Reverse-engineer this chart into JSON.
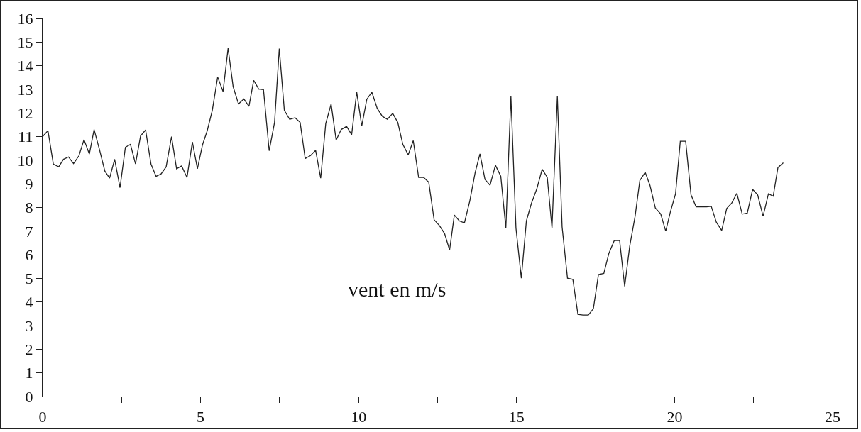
{
  "chart_data": {
    "type": "line",
    "annotations": [
      "vent en m/s"
    ],
    "x": [
      0.0,
      0.17,
      0.34,
      0.51,
      0.66,
      0.82,
      0.98,
      1.15,
      1.31,
      1.48,
      1.63,
      1.8,
      1.97,
      2.12,
      2.28,
      2.45,
      2.62,
      2.78,
      2.94,
      3.1,
      3.26,
      3.43,
      3.59,
      3.75,
      3.91,
      4.08,
      4.24,
      4.4,
      4.57,
      4.74,
      4.9,
      5.06,
      5.21,
      5.37,
      5.54,
      5.71,
      5.87,
      6.03,
      6.2,
      6.37,
      6.53,
      6.68,
      6.84,
      6.99,
      7.17,
      7.34,
      7.49,
      7.65,
      7.82,
      7.99,
      8.15,
      8.31,
      8.48,
      8.64,
      8.8,
      8.96,
      9.13,
      9.29,
      9.45,
      9.62,
      9.78,
      9.94,
      10.1,
      10.26,
      10.42,
      10.59,
      10.75,
      10.91,
      11.08,
      11.24,
      11.4,
      11.57,
      11.73,
      11.9,
      12.06,
      12.22,
      12.39,
      12.56,
      12.72,
      12.88,
      13.03,
      13.19,
      13.35,
      13.52,
      13.69,
      13.84,
      14.0,
      14.16,
      14.33,
      14.5,
      14.66,
      14.82,
      14.98,
      15.15,
      15.31,
      15.47,
      15.64,
      15.81,
      15.97,
      16.12,
      16.29,
      16.44,
      16.61,
      16.78,
      16.94,
      17.1,
      17.27,
      17.43,
      17.59,
      17.76,
      17.92,
      18.09,
      18.26,
      18.42,
      18.58,
      18.75,
      18.9,
      19.07,
      19.22,
      19.39,
      19.56,
      19.72,
      19.86,
      20.03,
      20.18,
      20.35,
      20.52,
      20.68,
      20.85,
      21.01,
      21.16,
      21.32,
      21.49,
      21.65,
      21.81,
      21.97,
      22.14,
      22.3,
      22.47,
      22.63,
      22.8,
      22.97,
      23.12,
      23.27,
      23.44
    ],
    "values": [
      11.0,
      11.25,
      9.84,
      9.72,
      10.04,
      10.14,
      9.86,
      10.19,
      10.87,
      10.26,
      11.3,
      10.45,
      9.54,
      9.24,
      10.04,
      8.84,
      10.55,
      10.67,
      9.84,
      11.03,
      11.28,
      9.84,
      9.32,
      9.42,
      9.72,
      11.0,
      9.64,
      9.76,
      9.27,
      10.77,
      9.64,
      10.65,
      11.25,
      12.11,
      13.52,
      12.91,
      14.74,
      13.11,
      12.38,
      12.59,
      12.28,
      13.38,
      13.01,
      12.99,
      10.4,
      11.6,
      14.72,
      12.11,
      11.73,
      11.8,
      11.6,
      10.07,
      10.2,
      10.42,
      9.24,
      11.55,
      12.38,
      10.85,
      11.3,
      11.43,
      11.08,
      12.88,
      11.45,
      12.58,
      12.88,
      12.19,
      11.86,
      11.73,
      11.98,
      11.6,
      10.67,
      10.23,
      10.83,
      9.27,
      9.27,
      9.07,
      7.48,
      7.23,
      6.9,
      6.2,
      7.68,
      7.43,
      7.35,
      8.28,
      9.49,
      10.27,
      9.19,
      8.94,
      9.79,
      9.32,
      7.13,
      12.7,
      7.13,
      5.01,
      7.43,
      8.18,
      8.79,
      9.62,
      9.28,
      7.13,
      12.7,
      7.18,
      5.01,
      4.96,
      3.48,
      3.45,
      3.45,
      3.72,
      5.16,
      5.21,
      6.06,
      6.6,
      6.6,
      4.66,
      6.37,
      7.63,
      9.14,
      9.49,
      8.94,
      7.98,
      7.73,
      7.0,
      7.78,
      8.58,
      10.8,
      10.8,
      8.53,
      8.03,
      8.03,
      8.03,
      8.05,
      7.38,
      7.03,
      7.96,
      8.19,
      8.6,
      7.72,
      7.76,
      8.77,
      8.53,
      7.63,
      8.58,
      8.48,
      9.69,
      9.89
    ],
    "color": "#222222",
    "xlim": [
      0,
      25
    ],
    "xticks": [
      0,
      {
        "value": 2.5,
        "label": null
      },
      5,
      {
        "value": 7.5,
        "label": null
      },
      10,
      {
        "value": 12.5,
        "label": null
      },
      15,
      {
        "value": 17.5,
        "label": null
      },
      20,
      {
        "value": 22.5,
        "label": null
      },
      25
    ],
    "ylim": [
      0,
      16
    ],
    "yticks": [
      0,
      1,
      2,
      3,
      4,
      5,
      6,
      7,
      8,
      9,
      10,
      11,
      12,
      13,
      14,
      15,
      16
    ],
    "grid": false,
    "marker": "none",
    "line_style": "solid"
  }
}
